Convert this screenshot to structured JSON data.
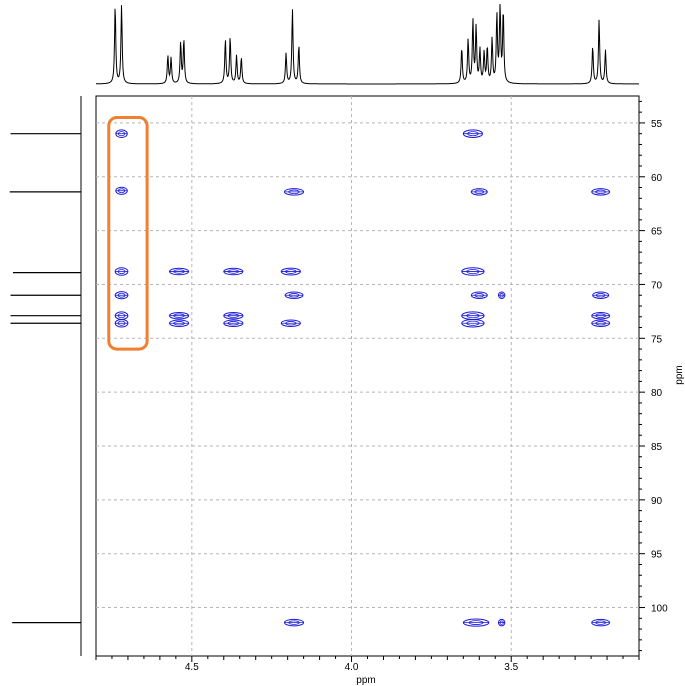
{
  "chart_data": {
    "type": "2D NMR contour plot (HSQC/HMBC-style)",
    "xlabel": "ppm",
    "ylabel": "ppm",
    "x_axis": {
      "reversed": true,
      "xlim": [
        4.8,
        3.1
      ],
      "ticks": [
        4.5,
        4.0,
        3.5
      ],
      "tick_labels": [
        "4.5",
        "4.0",
        "3.5"
      ]
    },
    "y_axis": {
      "inverted": true,
      "ylim": [
        52.5,
        104.5
      ],
      "ticks": [
        55,
        60,
        65,
        70,
        75,
        80,
        85,
        90,
        95,
        100
      ],
      "tick_labels": [
        "55",
        "60",
        "65",
        "70",
        "75",
        "80",
        "85",
        "90",
        "95",
        "100"
      ]
    },
    "grid": true,
    "peak_color": "#1a1ad6",
    "highlight_color": "#f07f32",
    "highlight_region": {
      "x": [
        4.76,
        4.64
      ],
      "y": [
        54.5,
        76.0
      ]
    },
    "top_projection_peaks": [
      {
        "x": 4.74,
        "h": 0.98
      },
      {
        "x": 4.72,
        "h": 0.98
      },
      {
        "x": 4.575,
        "h": 0.35
      },
      {
        "x": 4.565,
        "h": 0.32
      },
      {
        "x": 4.535,
        "h": 0.52
      },
      {
        "x": 4.525,
        "h": 0.55
      },
      {
        "x": 4.395,
        "h": 0.55
      },
      {
        "x": 4.38,
        "h": 0.58
      },
      {
        "x": 4.36,
        "h": 0.35
      },
      {
        "x": 4.345,
        "h": 0.33
      },
      {
        "x": 4.205,
        "h": 0.38
      },
      {
        "x": 4.185,
        "h": 0.93
      },
      {
        "x": 4.165,
        "h": 0.48
      },
      {
        "x": 3.655,
        "h": 0.45
      },
      {
        "x": 3.635,
        "h": 0.55
      },
      {
        "x": 3.62,
        "h": 0.78
      },
      {
        "x": 3.61,
        "h": 0.7
      },
      {
        "x": 3.598,
        "h": 0.42
      },
      {
        "x": 3.585,
        "h": 0.38
      },
      {
        "x": 3.575,
        "h": 0.45
      },
      {
        "x": 3.56,
        "h": 0.55
      },
      {
        "x": 3.545,
        "h": 0.85
      },
      {
        "x": 3.535,
        "h": 1.0
      },
      {
        "x": 3.525,
        "h": 0.9
      },
      {
        "x": 3.245,
        "h": 0.47
      },
      {
        "x": 3.225,
        "h": 0.8
      },
      {
        "x": 3.205,
        "h": 0.42
      }
    ],
    "left_projection_peaks": [
      {
        "y": 56.0,
        "h": 0.87
      },
      {
        "y": 61.4,
        "h": 0.88
      },
      {
        "y": 68.9,
        "h": 0.84
      },
      {
        "y": 71.0,
        "h": 0.87
      },
      {
        "y": 72.9,
        "h": 0.87
      },
      {
        "y": 73.6,
        "h": 0.87
      },
      {
        "y": 101.4,
        "h": 0.85
      }
    ],
    "cross_peaks": [
      {
        "x": 4.72,
        "y": 56.0,
        "w": 0.018,
        "h": 0.35
      },
      {
        "x": 3.62,
        "y": 56.0,
        "w": 0.03,
        "h": 0.35
      },
      {
        "x": 4.72,
        "y": 61.3,
        "w": 0.018,
        "h": 0.33
      },
      {
        "x": 4.18,
        "y": 61.4,
        "w": 0.03,
        "h": 0.3
      },
      {
        "x": 3.6,
        "y": 61.4,
        "w": 0.025,
        "h": 0.3
      },
      {
        "x": 3.22,
        "y": 61.4,
        "w": 0.028,
        "h": 0.3
      },
      {
        "x": 4.72,
        "y": 68.8,
        "w": 0.02,
        "h": 0.35
      },
      {
        "x": 4.54,
        "y": 68.8,
        "w": 0.03,
        "h": 0.3
      },
      {
        "x": 4.37,
        "y": 68.8,
        "w": 0.03,
        "h": 0.3
      },
      {
        "x": 4.19,
        "y": 68.8,
        "w": 0.03,
        "h": 0.32
      },
      {
        "x": 3.62,
        "y": 68.8,
        "w": 0.035,
        "h": 0.35
      },
      {
        "x": 4.72,
        "y": 71.0,
        "w": 0.02,
        "h": 0.33
      },
      {
        "x": 4.18,
        "y": 71.0,
        "w": 0.028,
        "h": 0.3
      },
      {
        "x": 3.6,
        "y": 71.0,
        "w": 0.025,
        "h": 0.3
      },
      {
        "x": 3.53,
        "y": 71.0,
        "w": 0.01,
        "h": 0.3
      },
      {
        "x": 3.22,
        "y": 71.0,
        "w": 0.025,
        "h": 0.3
      },
      {
        "x": 4.72,
        "y": 72.9,
        "w": 0.02,
        "h": 0.35
      },
      {
        "x": 4.72,
        "y": 73.6,
        "w": 0.02,
        "h": 0.35
      },
      {
        "x": 4.54,
        "y": 72.9,
        "w": 0.03,
        "h": 0.3
      },
      {
        "x": 4.54,
        "y": 73.6,
        "w": 0.03,
        "h": 0.3
      },
      {
        "x": 4.37,
        "y": 72.9,
        "w": 0.03,
        "h": 0.3
      },
      {
        "x": 4.37,
        "y": 73.6,
        "w": 0.03,
        "h": 0.3
      },
      {
        "x": 4.19,
        "y": 73.6,
        "w": 0.03,
        "h": 0.3
      },
      {
        "x": 3.62,
        "y": 72.9,
        "w": 0.035,
        "h": 0.35
      },
      {
        "x": 3.62,
        "y": 73.6,
        "w": 0.035,
        "h": 0.35
      },
      {
        "x": 3.22,
        "y": 72.9,
        "w": 0.028,
        "h": 0.3
      },
      {
        "x": 3.22,
        "y": 73.6,
        "w": 0.028,
        "h": 0.3
      },
      {
        "x": 4.18,
        "y": 101.4,
        "w": 0.03,
        "h": 0.3
      },
      {
        "x": 3.61,
        "y": 101.4,
        "w": 0.04,
        "h": 0.33
      },
      {
        "x": 3.53,
        "y": 101.4,
        "w": 0.01,
        "h": 0.3
      },
      {
        "x": 3.22,
        "y": 101.4,
        "w": 0.028,
        "h": 0.3
      }
    ]
  }
}
